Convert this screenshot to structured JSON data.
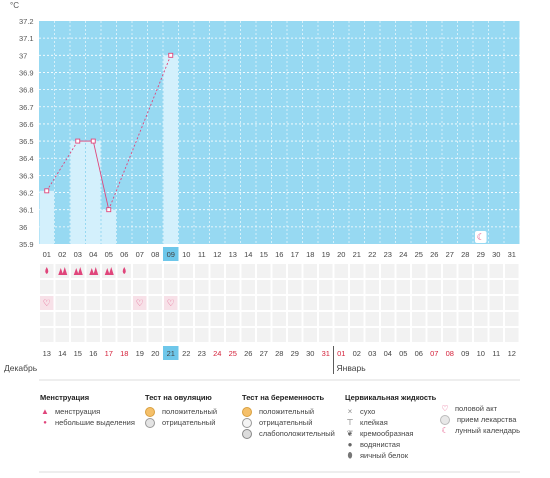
{
  "chart_data": {
    "type": "line",
    "y_unit": "°C",
    "yticks": [
      35.9,
      36,
      36.1,
      36.2,
      36.3,
      36.4,
      36.5,
      36.6,
      36.7,
      36.8,
      36.9,
      37,
      37.1,
      37.2
    ],
    "ylim": [
      35.9,
      37.2
    ],
    "cycle_days": [
      "01",
      "02",
      "03",
      "04",
      "05",
      "06",
      "07",
      "08",
      "09",
      "10",
      "11",
      "12",
      "13",
      "14",
      "15",
      "16",
      "17",
      "18",
      "19",
      "20",
      "21",
      "22",
      "23",
      "24",
      "25",
      "26",
      "27",
      "28",
      "29",
      "30",
      "31"
    ],
    "temperature": [
      {
        "day": "01",
        "value": 36.21
      },
      {
        "day": "03",
        "value": 36.5
      },
      {
        "day": "04",
        "value": 36.5
      },
      {
        "day": "05",
        "value": 36.1
      },
      {
        "day": "09",
        "value": 37.0
      }
    ],
    "today_day": "09",
    "dates": [
      "13",
      "14",
      "15",
      "16",
      "17",
      "18",
      "19",
      "20",
      "21",
      "22",
      "23",
      "24",
      "25",
      "26",
      "27",
      "28",
      "29",
      "30",
      "31",
      "01",
      "02",
      "03",
      "04",
      "05",
      "06",
      "07",
      "08",
      "09",
      "10",
      "11",
      "12"
    ],
    "red_dates_index": [
      4,
      5,
      11,
      12,
      18,
      19,
      25,
      26
    ],
    "months": {
      "first": "Декабрь",
      "second": "Январь"
    },
    "menstruation": [
      {
        "day": "01",
        "type": "light"
      },
      {
        "day": "02",
        "type": "heavy"
      },
      {
        "day": "03",
        "type": "heavy"
      },
      {
        "day": "04",
        "type": "heavy"
      },
      {
        "day": "05",
        "type": "heavy"
      },
      {
        "day": "06",
        "type": "light"
      }
    ],
    "intercourse_days": [
      "01",
      "07",
      "09"
    ],
    "lunar_day": "29"
  },
  "legend": {
    "menstruation": {
      "title": "Менструация",
      "items": [
        "менструация",
        "небольшие выделения"
      ]
    },
    "ovulation_test": {
      "title": "Тест на овуляцию",
      "items": [
        "положительный",
        "отрицательный"
      ]
    },
    "pregnancy_test": {
      "title": "Тест на беременность",
      "items": [
        "положительный",
        "отрицательный",
        "слабоположительный"
      ]
    },
    "cervical_fluid": {
      "title": "Цервикальная жидкость",
      "items": [
        "сухо",
        "клейкая",
        "кремообразная",
        "водянистая",
        "яичный белок"
      ]
    },
    "other": {
      "items": [
        "половой акт",
        "прием лекарства",
        "лунный календарь"
      ]
    }
  },
  "colors": {
    "plot_bg": "#97d9f2",
    "temp_bar": "#d3f0fc",
    "today": "#6ec7ea",
    "line": "#e0457b",
    "red_date": "#d4213a",
    "grid_cell": "#f2f2f2"
  }
}
